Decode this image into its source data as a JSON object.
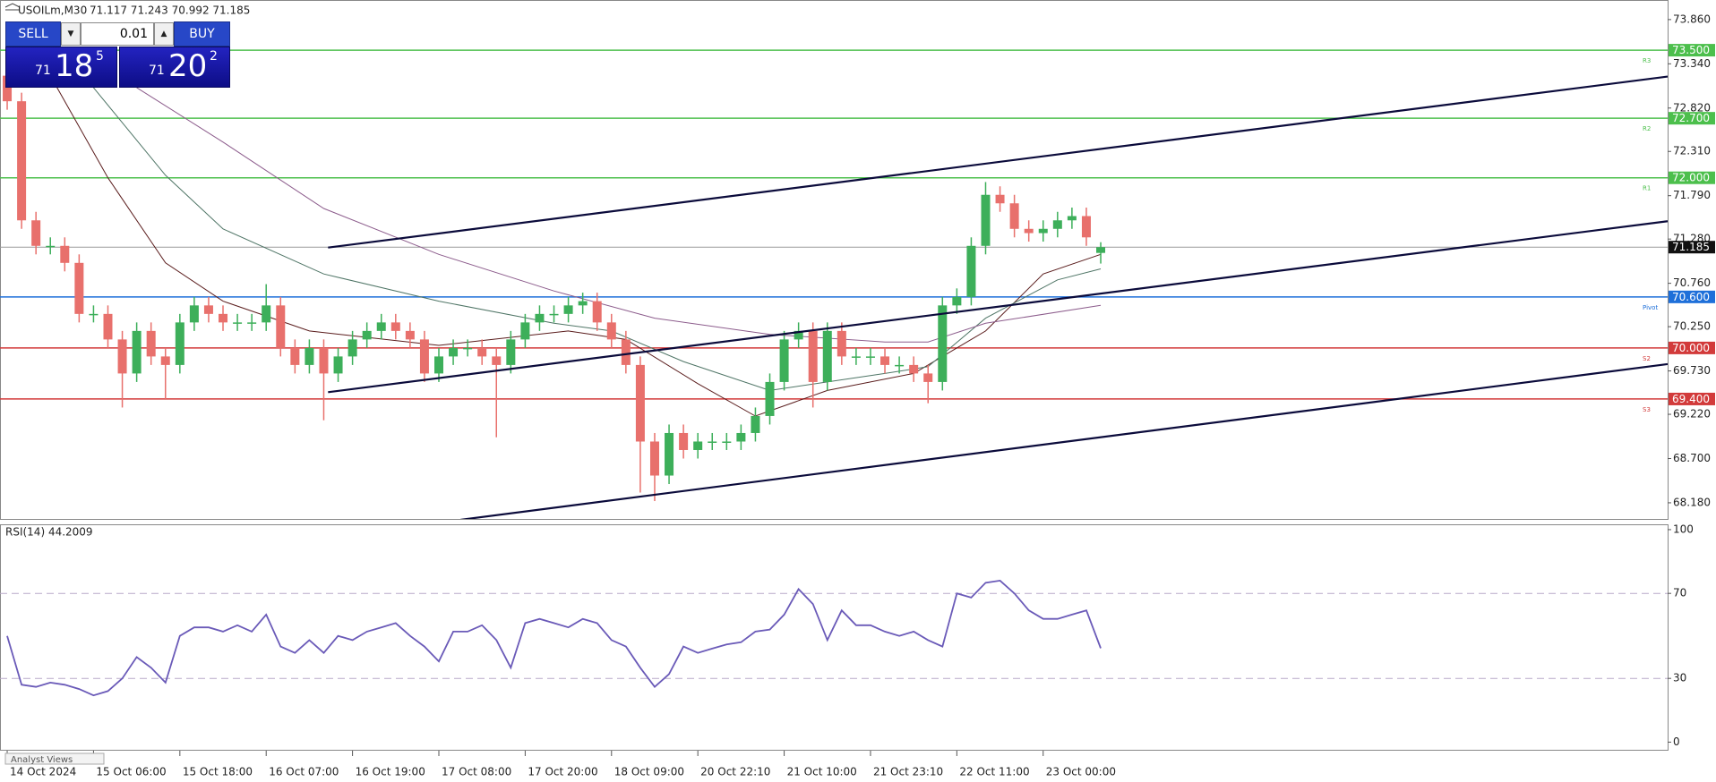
{
  "header": {
    "symbol": "USOILm,M30",
    "ohlc": "71.117 71.243 70.992 71.185"
  },
  "trade_panel": {
    "sell": "SELL",
    "buy": "BUY",
    "volume": "0.01",
    "sell_price": {
      "prefix": "71",
      "big": "18",
      "sup": "5"
    },
    "buy_price": {
      "prefix": "71",
      "big": "20",
      "sup": "2"
    }
  },
  "footer_tab": "Analyst Views",
  "chart_data": [
    {
      "type": "candlestick",
      "open": [
        73.2,
        72.9,
        71.5,
        71.2,
        71.2,
        71.0,
        70.4,
        70.4,
        70.1,
        69.7,
        70.2,
        69.9,
        69.8,
        70.3,
        70.5,
        70.4,
        70.3,
        70.3,
        70.3,
        70.5,
        70.0,
        69.8,
        70.0,
        69.7,
        69.9,
        70.1,
        70.2,
        70.3,
        70.2,
        70.1,
        69.7,
        69.9,
        70.0,
        70.0,
        69.9,
        69.8,
        70.1,
        70.3,
        70.4,
        70.4,
        70.5,
        70.55,
        70.3,
        70.1,
        69.8,
        68.9,
        68.5,
        69.0,
        68.8,
        68.9,
        68.9,
        68.9,
        69.0,
        69.2,
        69.6,
        70.1,
        70.2,
        69.6,
        70.2,
        69.9,
        69.9,
        69.9,
        69.8,
        69.8,
        69.7,
        69.6,
        70.5,
        70.6,
        71.2,
        71.8,
        71.7,
        71.4,
        71.35,
        71.4,
        71.5,
        71.55,
        71.117
      ],
      "high": [
        73.5,
        73.0,
        71.6,
        71.3,
        71.3,
        71.1,
        70.5,
        70.5,
        70.2,
        70.3,
        70.3,
        70.0,
        70.4,
        70.6,
        70.6,
        70.5,
        70.4,
        70.4,
        70.75,
        70.6,
        70.1,
        70.1,
        70.1,
        70.0,
        70.2,
        70.3,
        70.4,
        70.4,
        70.3,
        70.2,
        70.0,
        70.1,
        70.1,
        70.1,
        70.0,
        70.2,
        70.4,
        70.5,
        70.5,
        70.6,
        70.65,
        70.65,
        70.4,
        70.2,
        69.9,
        69.0,
        69.1,
        69.1,
        69.0,
        69.0,
        69.0,
        69.1,
        69.3,
        69.7,
        70.2,
        70.3,
        70.3,
        70.3,
        70.3,
        70.0,
        70.0,
        70.0,
        69.9,
        69.9,
        69.8,
        70.6,
        70.7,
        71.3,
        71.95,
        71.9,
        71.8,
        71.5,
        71.5,
        71.6,
        71.65,
        71.65,
        71.243
      ],
      "low": [
        72.8,
        71.4,
        71.1,
        71.1,
        70.9,
        70.3,
        70.3,
        70.0,
        69.3,
        69.6,
        69.8,
        69.4,
        69.7,
        70.2,
        70.3,
        70.2,
        70.2,
        70.2,
        70.2,
        69.9,
        69.7,
        69.7,
        69.15,
        69.6,
        69.8,
        70.0,
        70.1,
        70.1,
        70.0,
        69.6,
        69.6,
        69.8,
        69.9,
        69.8,
        68.95,
        69.7,
        70.0,
        70.2,
        70.3,
        70.3,
        70.4,
        70.2,
        70.0,
        69.7,
        68.3,
        68.2,
        68.4,
        68.7,
        68.7,
        68.8,
        68.8,
        68.8,
        68.9,
        69.1,
        69.5,
        70.0,
        69.3,
        69.5,
        69.8,
        69.8,
        69.8,
        69.7,
        69.7,
        69.6,
        69.35,
        69.5,
        70.4,
        70.5,
        71.1,
        71.6,
        71.3,
        71.25,
        71.25,
        71.3,
        71.4,
        71.2,
        70.992
      ],
      "close": [
        72.9,
        71.5,
        71.2,
        71.2,
        71.0,
        70.4,
        70.4,
        70.1,
        69.7,
        70.2,
        69.9,
        69.8,
        70.3,
        70.5,
        70.4,
        70.3,
        70.3,
        70.3,
        70.5,
        70.0,
        69.8,
        70.0,
        69.7,
        69.9,
        70.1,
        70.2,
        70.3,
        70.2,
        70.1,
        69.7,
        69.9,
        70.0,
        70.0,
        69.9,
        69.8,
        70.1,
        70.3,
        70.4,
        70.4,
        70.5,
        70.55,
        70.3,
        70.1,
        69.8,
        68.9,
        68.5,
        69.0,
        68.8,
        68.9,
        68.9,
        68.9,
        69.0,
        69.2,
        69.6,
        70.1,
        70.2,
        69.6,
        70.2,
        69.9,
        69.9,
        69.9,
        69.8,
        69.8,
        69.7,
        69.6,
        70.5,
        70.6,
        71.2,
        71.8,
        71.7,
        71.4,
        71.35,
        71.4,
        71.5,
        71.55,
        71.3,
        71.185
      ],
      "colors": {
        "up": "#3daf5a",
        "down": "#e8706c"
      },
      "xlim": [
        -0.5,
        115.4
      ],
      "ylim": [
        67.99,
        74.09
      ],
      "yticks": [
        {
          "value": 73.86,
          "label": "73.860"
        },
        {
          "value": 73.34,
          "label": "73.340"
        },
        {
          "value": 72.82,
          "label": "72.820"
        },
        {
          "value": 72.31,
          "label": "72.310"
        },
        {
          "value": 71.79,
          "label": "71.790"
        },
        {
          "value": 71.28,
          "label": "71.280"
        },
        {
          "value": 70.76,
          "label": "70.760"
        },
        {
          "value": 70.25,
          "label": "70.250"
        },
        {
          "value": 69.73,
          "label": "69.730"
        },
        {
          "value": 69.22,
          "label": "69.220"
        },
        {
          "value": 68.7,
          "label": "68.700"
        },
        {
          "value": 68.18,
          "label": "68.180"
        }
      ],
      "series": [
        {
          "color": "#5a1c1c",
          "x": [
            3,
            7,
            11,
            15,
            21,
            30,
            39,
            43,
            48,
            52,
            57,
            63,
            68,
            72,
            76
          ],
          "values": [
            73.2,
            72.0,
            71.0,
            70.55,
            70.2,
            70.03,
            70.2,
            70.1,
            69.58,
            69.2,
            69.5,
            69.7,
            70.2,
            70.87,
            71.1
          ]
        },
        {
          "color": "#4f7566",
          "x": [
            6,
            11,
            15,
            22,
            30,
            38,
            42,
            47,
            53,
            61,
            64,
            68,
            73,
            76
          ],
          "values": [
            73.06,
            72.03,
            71.4,
            70.87,
            70.55,
            70.29,
            70.2,
            69.84,
            69.5,
            69.7,
            69.78,
            70.35,
            70.8,
            70.93
          ]
        },
        {
          "color": "#8c5c8c",
          "x": [
            9,
            15,
            22,
            30,
            38,
            45,
            53,
            61,
            64,
            68,
            76
          ],
          "values": [
            73.06,
            72.42,
            71.64,
            71.1,
            70.67,
            70.35,
            70.16,
            70.07,
            70.07,
            70.29,
            70.5
          ]
        }
      ],
      "trendlines": [
        {
          "color": "#0b0b3b",
          "x": [
            22.3,
            115.4
          ],
          "values": [
            71.18,
            73.19
          ]
        },
        {
          "color": "#0b0b3b",
          "x": [
            22.3,
            115.4
          ],
          "values": [
            69.48,
            71.49
          ]
        },
        {
          "color": "#0b0b3b",
          "x": [
            31.5,
            115.4
          ],
          "values": [
            67.98,
            69.81
          ]
        }
      ],
      "levels": [
        {
          "label": "R3",
          "value": 73.5,
          "value_label": "73.500",
          "color": "#4cbf4c"
        },
        {
          "label": "R2",
          "value": 72.7,
          "value_label": "72.700",
          "color": "#4cbf4c"
        },
        {
          "label": "R1",
          "value": 72.0,
          "value_label": "72.000",
          "color": "#4cbf4c"
        },
        {
          "label": "Pivot",
          "value": 70.6,
          "value_label": "70.600",
          "color": "#1e6fd9"
        },
        {
          "label": "S2",
          "value": 70.0,
          "value_label": "70.000",
          "color": "#d23a3a"
        },
        {
          "label": "S3",
          "value": 69.4,
          "value_label": "69.400",
          "color": "#d23a3a"
        }
      ],
      "current": {
        "value": 71.185,
        "value_label": "71.185",
        "color": "#9a9a9a"
      }
    },
    {
      "type": "line",
      "title": "RSI(14) 44.2009",
      "color": "#6a5ab8",
      "values": [
        50,
        27,
        26,
        28,
        27,
        25,
        22,
        24,
        30,
        40,
        35,
        28,
        50,
        54,
        54,
        52,
        55,
        52,
        60,
        45,
        42,
        48,
        42,
        50,
        48,
        52,
        54,
        56,
        50,
        45,
        38,
        52,
        52,
        55,
        48,
        35,
        56,
        58,
        56,
        54,
        58,
        56,
        48,
        45,
        35,
        26,
        32,
        45,
        42,
        44,
        46,
        47,
        52,
        53,
        60,
        72,
        65,
        48,
        62,
        55,
        55,
        52,
        50,
        52,
        48,
        45,
        70,
        68,
        75,
        76,
        70,
        62,
        58,
        58,
        60,
        62,
        44.2009
      ],
      "xlim": [
        -0.5,
        115.4
      ],
      "ylim": [
        -3.6,
        102.5
      ],
      "yticks": [
        0,
        30,
        70,
        100
      ],
      "levels": [
        30,
        70
      ],
      "xticks": [
        {
          "value": 0,
          "label": "14 Oct 2024"
        },
        {
          "value": 6,
          "label": "15 Oct 06:00"
        },
        {
          "value": 12,
          "label": "15 Oct 18:00"
        },
        {
          "value": 18,
          "label": "16 Oct 07:00"
        },
        {
          "value": 24,
          "label": "16 Oct 19:00"
        },
        {
          "value": 30,
          "label": "17 Oct 08:00"
        },
        {
          "value": 36,
          "label": "17 Oct 20:00"
        },
        {
          "value": 42,
          "label": "18 Oct 09:00"
        },
        {
          "value": 48,
          "label": "20 Oct 22:10"
        },
        {
          "value": 54,
          "label": "21 Oct 10:00"
        },
        {
          "value": 60,
          "label": "21 Oct 23:10"
        },
        {
          "value": 66,
          "label": "22 Oct 11:00"
        },
        {
          "value": 72,
          "label": "23 Oct 00:00"
        }
      ]
    }
  ]
}
